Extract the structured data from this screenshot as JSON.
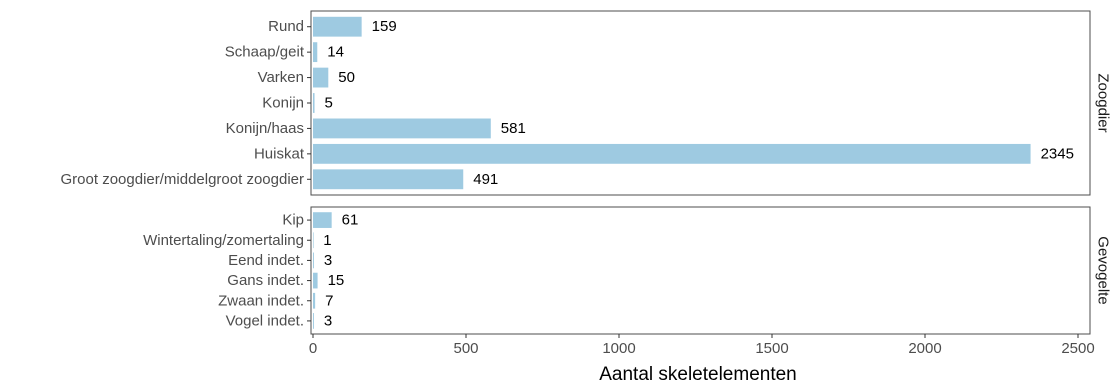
{
  "chart_data": {
    "type": "bar",
    "orientation": "horizontal",
    "xlabel": "Aantal skeletelementen",
    "xlim": [
      0,
      2500
    ],
    "x_ticks": [
      0,
      500,
      1000,
      1500,
      2000,
      2500
    ],
    "grid": false,
    "bar_color": "#9ecae1",
    "panels": [
      {
        "facet": "Zoogdier",
        "categories": [
          "Rund",
          "Schaap/geit",
          "Varken",
          "Konijn",
          "Konijn/haas",
          "Huiskat",
          "Groot zoogdier/middelgroot zoogdier"
        ],
        "values": [
          159,
          14,
          50,
          5,
          581,
          2345,
          491
        ]
      },
      {
        "facet": "Gevogelte",
        "categories": [
          "Kip",
          "Wintertaling/zomertaling",
          "Eend indet.",
          "Gans indet.",
          "Zwaan indet.",
          "Vogel indet."
        ],
        "values": [
          61,
          1,
          3,
          15,
          7,
          3
        ]
      }
    ]
  }
}
